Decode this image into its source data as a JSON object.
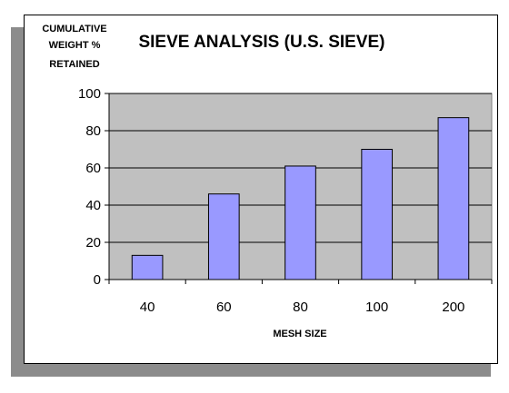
{
  "chart_data": {
    "type": "bar",
    "title": "SIEVE ANALYSIS (U.S. SIEVE)",
    "ylabel_lines": [
      "CUMULATIVE",
      "WEIGHT %",
      "RETAINED"
    ],
    "xlabel": "MESH SIZE",
    "categories": [
      "40",
      "60",
      "80",
      "100",
      "200"
    ],
    "values": [
      13,
      46,
      61,
      70,
      87
    ],
    "ylim": [
      0,
      100
    ],
    "yticks": [
      "0",
      "20",
      "40",
      "60",
      "80",
      "100"
    ],
    "grid": true,
    "legend": "none",
    "colors": {
      "bar": "#9999ff",
      "plot_bg": "#c0c0c0"
    }
  }
}
